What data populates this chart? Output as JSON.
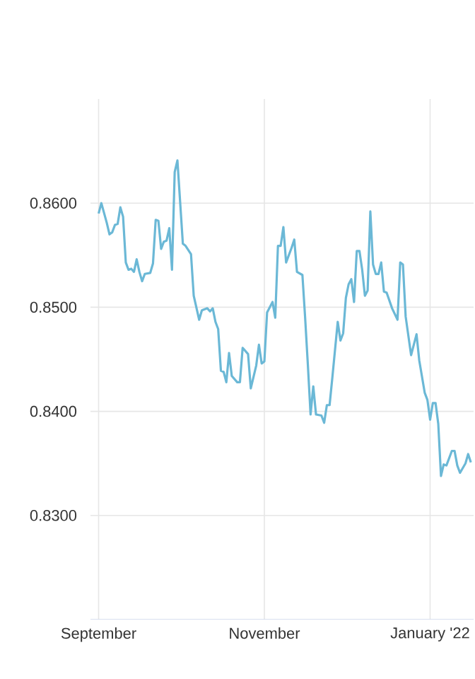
{
  "chart_data": {
    "type": "line",
    "color": "#6bb8d6",
    "grid": true,
    "line_style": "solid",
    "marker": "none",
    "xlim": [
      "2021-08-29",
      "2022-01-17"
    ],
    "xticks": [
      {
        "value": "2021-09-01",
        "label": "September"
      },
      {
        "value": "2021-11-01",
        "label": "November"
      },
      {
        "value": "2022-01-01",
        "label": "January '22"
      }
    ],
    "ylim": [
      0.82,
      0.87
    ],
    "yticks": [
      {
        "value": 0.83,
        "label": "0.8300"
      },
      {
        "value": 0.84,
        "label": "0.8400"
      },
      {
        "value": 0.85,
        "label": "0.8500"
      },
      {
        "value": 0.86,
        "label": "0.8600"
      }
    ],
    "x": [
      "2021-09-01",
      "2021-09-02",
      "2021-09-04",
      "2021-09-05",
      "2021-09-06",
      "2021-09-07",
      "2021-09-08",
      "2021-09-09",
      "2021-09-10",
      "2021-09-11",
      "2021-09-12",
      "2021-09-13",
      "2021-09-14",
      "2021-09-15",
      "2021-09-16",
      "2021-09-17",
      "2021-09-18",
      "2021-09-20",
      "2021-09-21",
      "2021-09-22",
      "2021-09-23",
      "2021-09-24",
      "2021-09-25",
      "2021-09-26",
      "2021-09-27",
      "2021-09-28",
      "2021-09-29",
      "2021-09-30",
      "2021-10-02",
      "2021-10-03",
      "2021-10-05",
      "2021-10-06",
      "2021-10-08",
      "2021-10-09",
      "2021-10-11",
      "2021-10-12",
      "2021-10-13",
      "2021-10-14",
      "2021-10-15",
      "2021-10-16",
      "2021-10-17",
      "2021-10-18",
      "2021-10-19",
      "2021-10-20",
      "2021-10-22",
      "2021-10-23",
      "2021-10-24",
      "2021-10-25",
      "2021-10-26",
      "2021-10-27",
      "2021-10-29",
      "2021-10-30",
      "2021-10-31",
      "2021-11-01",
      "2021-11-02",
      "2021-11-04",
      "2021-11-05",
      "2021-11-06",
      "2021-11-07",
      "2021-11-08",
      "2021-11-09",
      "2021-11-11",
      "2021-11-12",
      "2021-11-13",
      "2021-11-15",
      "2021-11-16",
      "2021-11-17",
      "2021-11-18",
      "2021-11-19",
      "2021-11-20",
      "2021-11-22",
      "2021-11-23",
      "2021-11-24",
      "2021-11-25",
      "2021-11-26",
      "2021-11-28",
      "2021-11-29",
      "2021-11-30",
      "2021-12-01",
      "2021-12-02",
      "2021-12-03",
      "2021-12-04",
      "2021-12-05",
      "2021-12-06",
      "2021-12-07",
      "2021-12-08",
      "2021-12-09",
      "2021-12-10",
      "2021-12-11",
      "2021-12-12",
      "2021-12-13",
      "2021-12-14",
      "2021-12-15",
      "2021-12-16",
      "2021-12-18",
      "2021-12-20",
      "2021-12-21",
      "2021-12-22",
      "2021-12-23",
      "2021-12-25",
      "2021-12-27",
      "2021-12-28",
      "2021-12-30",
      "2021-12-31",
      "2022-01-01",
      "2022-01-02",
      "2022-01-03",
      "2022-01-04",
      "2022-01-05",
      "2022-01-06",
      "2022-01-07",
      "2022-01-09",
      "2022-01-10",
      "2022-01-11",
      "2022-01-12",
      "2022-01-14",
      "2022-01-15",
      "2022-01-16"
    ],
    "values": [
      0.859,
      0.86,
      0.8581,
      0.857,
      0.8572,
      0.8579,
      0.858,
      0.8596,
      0.8587,
      0.8543,
      0.8536,
      0.8537,
      0.8534,
      0.8546,
      0.8534,
      0.8525,
      0.8532,
      0.8533,
      0.8542,
      0.8584,
      0.8583,
      0.8556,
      0.8563,
      0.8564,
      0.8576,
      0.8536,
      0.863,
      0.8641,
      0.8561,
      0.8559,
      0.8551,
      0.8511,
      0.8488,
      0.8497,
      0.8499,
      0.8496,
      0.8499,
      0.8486,
      0.8479,
      0.8439,
      0.8438,
      0.8428,
      0.8456,
      0.8434,
      0.8428,
      0.8428,
      0.8461,
      0.8458,
      0.8455,
      0.8422,
      0.8444,
      0.8464,
      0.8446,
      0.8448,
      0.8495,
      0.8505,
      0.849,
      0.8559,
      0.8559,
      0.8577,
      0.8543,
      0.8557,
      0.8565,
      0.8534,
      0.8531,
      0.849,
      0.8445,
      0.8397,
      0.8424,
      0.8397,
      0.8396,
      0.8389,
      0.8406,
      0.8406,
      0.8432,
      0.8486,
      0.8468,
      0.8475,
      0.8509,
      0.8522,
      0.8527,
      0.8505,
      0.8554,
      0.8554,
      0.8536,
      0.8511,
      0.8516,
      0.8592,
      0.8541,
      0.8532,
      0.8532,
      0.8543,
      0.8515,
      0.8514,
      0.8499,
      0.8488,
      0.8543,
      0.8541,
      0.8491,
      0.8454,
      0.8474,
      0.8449,
      0.8418,
      0.8411,
      0.8392,
      0.8408,
      0.8408,
      0.8388,
      0.8338,
      0.8349,
      0.8348,
      0.8362,
      0.8362,
      0.8348,
      0.8341,
      0.835,
      0.8359,
      0.8351
    ]
  }
}
